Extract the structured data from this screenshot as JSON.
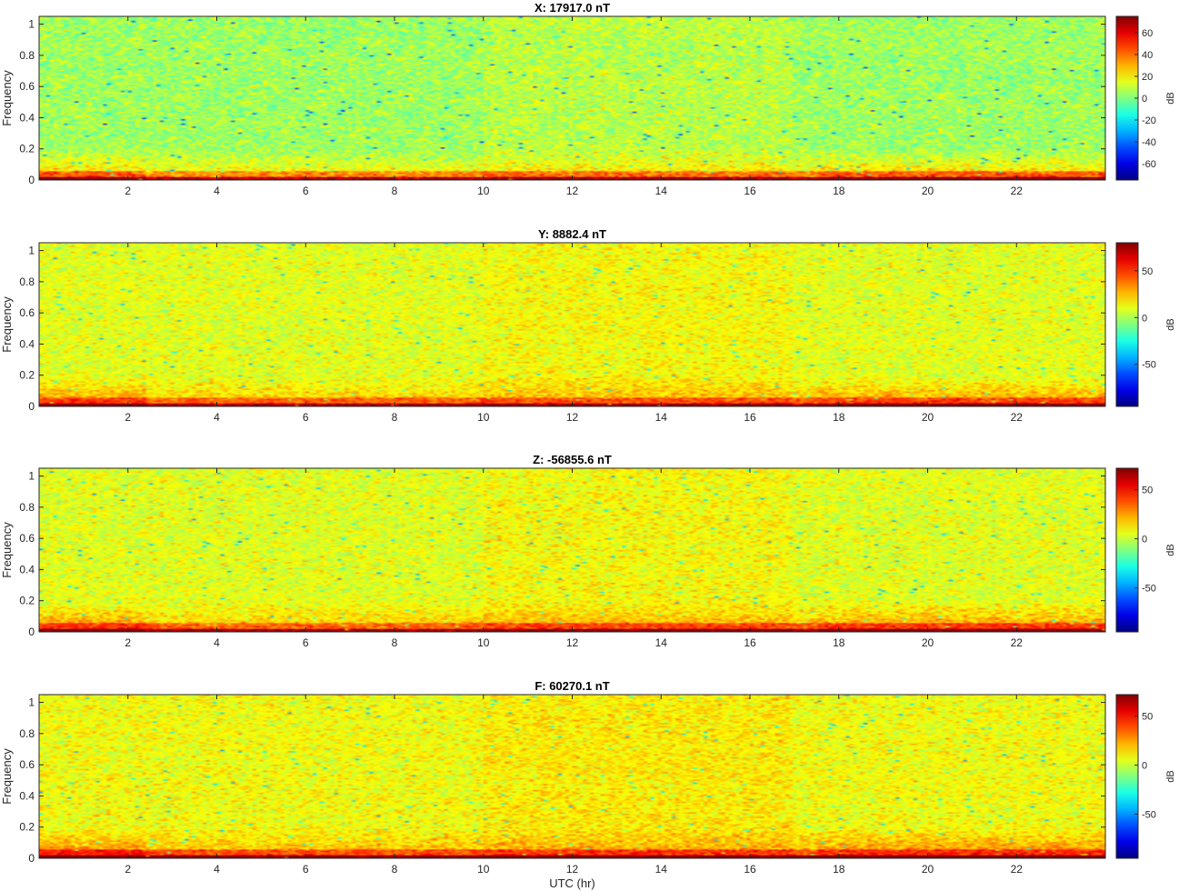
{
  "chart_data": [
    {
      "type": "heatmap",
      "title": "X: 17917.0 nT",
      "ylabel": "Frequency",
      "xlabel": "",
      "colorbar_label": "dB",
      "x_ticks": [
        "2",
        "4",
        "6",
        "8",
        "10",
        "12",
        "14",
        "16",
        "18",
        "20",
        "22"
      ],
      "y_ticks": [
        "0",
        "0.2",
        "0.4",
        "0.6",
        "0.8",
        "1"
      ],
      "colorbar_ticks": [
        "60",
        "40",
        "20",
        "0",
        "-20",
        "-40",
        "-60"
      ],
      "clim": [
        -75,
        75
      ],
      "base_level": 5,
      "xlim": [
        0,
        24
      ],
      "ylim": [
        0,
        1.05
      ]
    },
    {
      "type": "heatmap",
      "title": "Y: 8882.4 nT",
      "ylabel": "Frequency",
      "xlabel": "",
      "colorbar_label": "dB",
      "x_ticks": [
        "2",
        "4",
        "6",
        "8",
        "10",
        "12",
        "14",
        "16",
        "18",
        "20",
        "22"
      ],
      "y_ticks": [
        "0",
        "0.2",
        "0.4",
        "0.6",
        "0.8",
        "1"
      ],
      "colorbar_ticks": [
        "50",
        "0",
        "-50"
      ],
      "clim": [
        -95,
        80
      ],
      "base_level": 10,
      "xlim": [
        0,
        24
      ],
      "ylim": [
        0,
        1.05
      ]
    },
    {
      "type": "heatmap",
      "title": "Z: -56855.6 nT",
      "ylabel": "Frequency",
      "xlabel": "",
      "colorbar_label": "dB",
      "x_ticks": [
        "2",
        "4",
        "6",
        "8",
        "10",
        "12",
        "14",
        "16",
        "18",
        "20",
        "22"
      ],
      "y_ticks": [
        "0",
        "0.2",
        "0.4",
        "0.6",
        "0.8",
        "1"
      ],
      "colorbar_ticks": [
        "50",
        "0",
        "-50"
      ],
      "clim": [
        -95,
        72
      ],
      "base_level": 5,
      "xlim": [
        0,
        24
      ],
      "ylim": [
        0,
        1.05
      ]
    },
    {
      "type": "heatmap",
      "title": "F: 60270.1 nT",
      "ylabel": "Frequency",
      "xlabel": "UTC (hr)",
      "colorbar_label": "dB",
      "x_ticks": [
        "2",
        "4",
        "6",
        "8",
        "10",
        "12",
        "14",
        "16",
        "18",
        "20",
        "22"
      ],
      "y_ticks": [
        "0",
        "0.2",
        "0.4",
        "0.6",
        "0.8",
        "1"
      ],
      "colorbar_ticks": [
        "50",
        "0",
        "-50"
      ],
      "clim": [
        -95,
        72
      ],
      "base_level": 8,
      "xlim": [
        0,
        24
      ],
      "ylim": [
        0,
        1.05
      ]
    }
  ]
}
